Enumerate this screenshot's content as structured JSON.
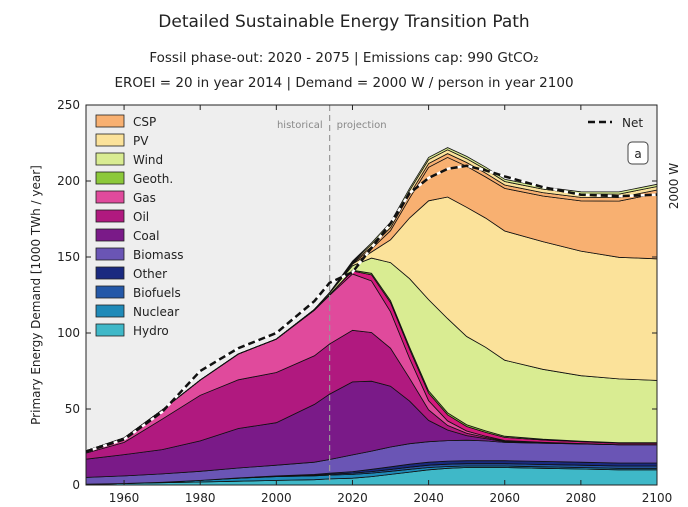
{
  "header": {
    "title": "Detailed Sustainable Energy Transition Path",
    "subtitle_line1": "Fossil phase-out: 2020 - 2075   |   Emissions cap: 990 GtCO₂",
    "subtitle_line2": "EROEI = 20 in year 2014   |   Demand = 2000 W / person in year 2100"
  },
  "chart_data": {
    "type": "area",
    "stacked": true,
    "ylabel": "Primary Energy Demand [1000 TWh / year]",
    "right_label": "2000 W",
    "panel_label": "a",
    "annotations": {
      "historical": "historical",
      "projection": "projection",
      "divider_year": 2014
    },
    "xlim": [
      1950,
      2100
    ],
    "ylim": [
      0,
      250
    ],
    "x_ticks": [
      1960,
      1980,
      2000,
      2020,
      2040,
      2060,
      2080,
      2100
    ],
    "y_ticks": [
      0,
      50,
      100,
      150,
      200,
      250
    ],
    "grid": false,
    "legend_position": "top-left",
    "x": [
      1950,
      1960,
      1970,
      1980,
      1990,
      2000,
      2010,
      2014,
      2020,
      2025,
      2030,
      2035,
      2040,
      2045,
      2050,
      2055,
      2060,
      2070,
      2080,
      2090,
      2100
    ],
    "series": [
      {
        "name": "Hydro",
        "color": "#3fb8c8",
        "values": [
          0.5,
          1,
          1.5,
          2,
          2.5,
          3,
          3.5,
          4,
          4.5,
          5.5,
          7,
          8.5,
          10,
          11,
          11.5,
          11.5,
          11.5,
          11,
          10.5,
          10,
          10
        ]
      },
      {
        "name": "Nuclear",
        "color": "#1f8ab8",
        "values": [
          0,
          0,
          0.3,
          1,
          2,
          2.5,
          2.5,
          2.5,
          2.5,
          2.3,
          2,
          1.8,
          1.5,
          1.2,
          1,
          1,
          1,
          1,
          1,
          1,
          1
        ]
      },
      {
        "name": "Biofuels",
        "color": "#2458a8",
        "values": [
          0,
          0,
          0,
          0,
          0,
          0.2,
          0.5,
          0.6,
          0.8,
          1,
          1.2,
          1.4,
          1.5,
          1.5,
          1.5,
          1.5,
          1.5,
          1.5,
          1.5,
          1.5,
          1.5
        ]
      },
      {
        "name": "Other",
        "color": "#1a2a80",
        "values": [
          0,
          0,
          0,
          0,
          0.2,
          0.3,
          0.5,
          0.7,
          1,
          1.5,
          1.8,
          2,
          2,
          2,
          2,
          2,
          2,
          2,
          2,
          2,
          2
        ]
      },
      {
        "name": "Biomass",
        "color": "#6a55b5",
        "values": [
          4.5,
          5,
          5.5,
          6,
          6.5,
          7,
          8,
          9,
          11,
          12,
          13,
          13.5,
          13.5,
          13.5,
          13.5,
          13,
          12,
          12,
          12,
          12,
          12
        ]
      },
      {
        "name": "Coal",
        "color": "#7a1a88",
        "values": [
          12,
          14,
          16,
          20,
          26,
          28,
          38,
          43,
          48,
          46,
          40,
          28,
          14,
          7,
          3,
          1.5,
          0.5,
          0.2,
          0.1,
          0,
          0
        ]
      },
      {
        "name": "Oil",
        "color": "#b0197f",
        "values": [
          4,
          8,
          20,
          30,
          32,
          33,
          32,
          33,
          34,
          32,
          25,
          15,
          7,
          3,
          1.5,
          0.8,
          0.4,
          0.2,
          0.1,
          0,
          0
        ]
      },
      {
        "name": "Gas",
        "color": "#e04a9c",
        "values": [
          1.5,
          3,
          6,
          10,
          17,
          22,
          30,
          32,
          37,
          34,
          24,
          13,
          6,
          3,
          1.5,
          0.8,
          0.4,
          0.2,
          0.1,
          0,
          0
        ]
      },
      {
        "name": "Geoth.",
        "color": "#8cc83a",
        "values": [
          0,
          0,
          0,
          0,
          0,
          0,
          0,
          0,
          0.5,
          1,
          1.3,
          1.5,
          1.5,
          1.3,
          1.2,
          1,
          0.8,
          0.5,
          0.4,
          0.3,
          0.3
        ]
      },
      {
        "name": "Wind",
        "color": "#d9ec92",
        "values": [
          0,
          0,
          0,
          0,
          0,
          0,
          0.5,
          1,
          3,
          10,
          25,
          45,
          60,
          62,
          58,
          55,
          50,
          46,
          43,
          42,
          41
        ]
      },
      {
        "name": "PV",
        "color": "#fbe29a",
        "values": [
          0,
          0,
          0,
          0,
          0,
          0,
          0,
          0.2,
          1,
          4,
          15,
          40,
          65,
          80,
          85,
          85,
          85,
          84,
          82,
          80,
          80
        ]
      },
      {
        "name": "CSP",
        "color": "#f8b071",
        "values": [
          0,
          0,
          0,
          0,
          0,
          0,
          0,
          0.1,
          0.5,
          2,
          6,
          13,
          22,
          26,
          27,
          27,
          28,
          30,
          33,
          37,
          43
        ]
      }
    ],
    "extra_band": {
      "color": "#d4197d",
      "values": [
        0,
        0,
        0,
        0,
        0,
        0,
        0,
        0.5,
        2,
        4,
        6,
        6,
        5,
        4,
        3,
        2.5,
        2,
        1.5,
        1.2,
        1,
        1
      ]
    },
    "top_bands": [
      {
        "color": "#f8b071",
        "values": [
          0,
          0,
          0,
          0,
          0,
          0,
          0,
          0,
          0.5,
          1.5,
          2,
          2.5,
          2.5,
          2.5,
          2.5,
          2.5,
          2.3,
          2.3,
          2.3,
          2.3,
          2.3
        ]
      },
      {
        "color": "#fbe29a",
        "values": [
          0,
          0,
          0,
          0,
          0,
          0,
          0,
          0,
          0.5,
          1.5,
          2,
          2.5,
          2.5,
          2.5,
          2.5,
          2.5,
          2.3,
          2.3,
          2.3,
          2.3,
          2.3
        ]
      },
      {
        "color": "#d9ec92",
        "values": [
          0,
          0,
          0,
          0,
          0,
          0,
          0,
          0,
          0.5,
          1,
          1.5,
          1.5,
          1.5,
          1.5,
          1.5,
          1.5,
          1.4,
          1.4,
          1.4,
          1.4,
          1.4
        ]
      }
    ],
    "net": {
      "name": "Net",
      "values": [
        22,
        30,
        48,
        75,
        90,
        100,
        121,
        133,
        140,
        156,
        172,
        192,
        202,
        208,
        210,
        207,
        203,
        196,
        191,
        190,
        191
      ]
    }
  }
}
